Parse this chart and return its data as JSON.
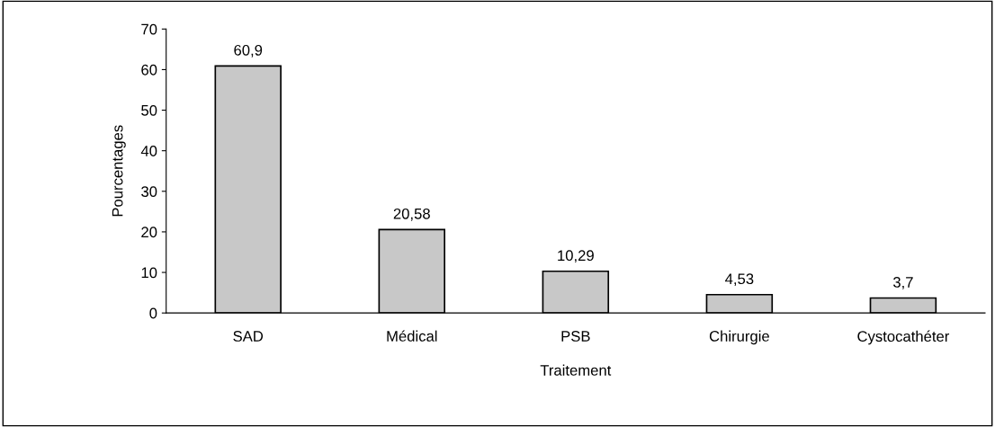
{
  "chart_data": {
    "type": "bar",
    "xlabel": "Traitement",
    "ylabel": "Pourcentages",
    "categories": [
      "SAD",
      "Médical",
      "PSB",
      "Chirurgie",
      "Cystocathéter"
    ],
    "values": [
      60.9,
      20.58,
      10.29,
      4.53,
      3.7
    ],
    "value_labels": [
      "60,9",
      "20,58",
      "10,29",
      "4,53",
      "3,7"
    ],
    "color": "#c8c8c8",
    "ylim": [
      0,
      70
    ],
    "yticks": [
      0,
      10,
      20,
      30,
      40,
      50,
      60,
      70
    ],
    "grid": false
  }
}
